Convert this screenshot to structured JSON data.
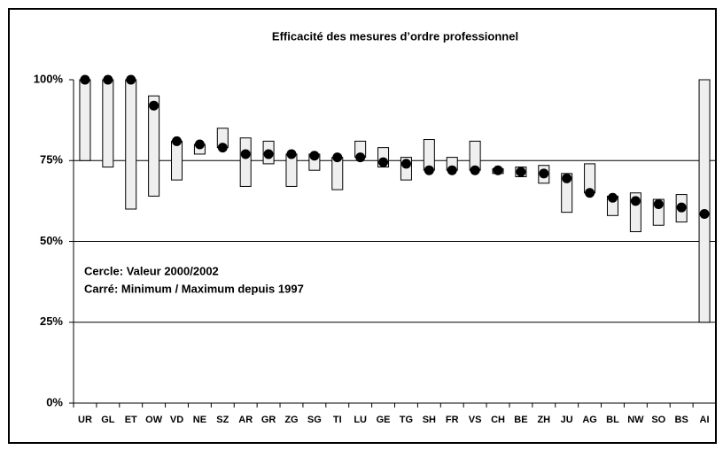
{
  "chart_data": {
    "type": "range",
    "title": "Efficacité des mesures d’ordre professionnel",
    "annotations": [
      "Cercle:  Valeur 2000/2002",
      "Carré:   Minimum / Maximum depuis 1997"
    ],
    "categories": [
      "UR",
      "GL",
      "ET",
      "OW",
      "VD",
      "NE",
      "SZ",
      "AR",
      "GR",
      "ZG",
      "SG",
      "TI",
      "LU",
      "GE",
      "TG",
      "SH",
      "FR",
      "VS",
      "CH",
      "BE",
      "ZH",
      "JU",
      "AG",
      "BL",
      "NW",
      "SO",
      "BS",
      "AI"
    ],
    "min": [
      75,
      73,
      60,
      64,
      69,
      77,
      79,
      67,
      74,
      67,
      72,
      66,
      76,
      73,
      69,
      72,
      72,
      72,
      71,
      70,
      68,
      59,
      65,
      58,
      53,
      55,
      56,
      25
    ],
    "max": [
      100,
      100,
      100,
      95,
      81,
      80,
      85,
      82,
      81,
      77,
      77,
      76,
      81,
      79,
      76,
      81.5,
      76,
      81,
      72.5,
      73,
      73.5,
      71,
      74,
      64,
      65,
      63,
      64.5,
      100
    ],
    "values": [
      100,
      100,
      100,
      92,
      81,
      80,
      79,
      77,
      77,
      77,
      76.5,
      76,
      76,
      74.5,
      74,
      72,
      72,
      72,
      72,
      71.5,
      71,
      69.5,
      65,
      63.5,
      62.5,
      61.5,
      60.5,
      58.5
    ],
    "ylim": [
      0,
      100
    ],
    "yticks": [
      {
        "value": 0,
        "label": "0%"
      },
      {
        "value": 25,
        "label": "25%"
      },
      {
        "value": 50,
        "label": "50%"
      },
      {
        "value": 75,
        "label": "75%"
      },
      {
        "value": 100,
        "label": "100%"
      }
    ],
    "grid": true,
    "bar_color": "#efefef",
    "dot_color": "#000000"
  }
}
